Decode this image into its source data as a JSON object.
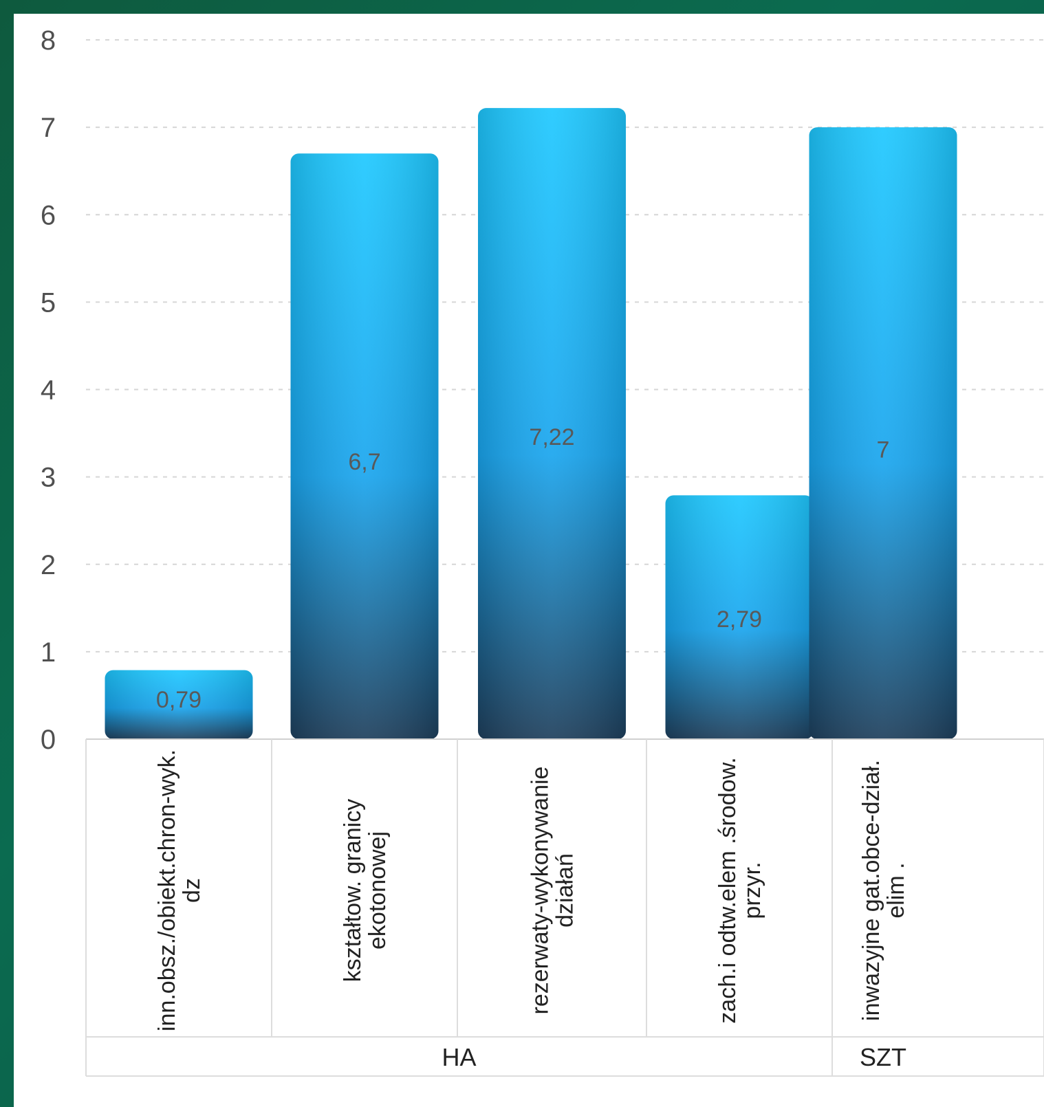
{
  "colors": {
    "bar_top": "#1ec8ff",
    "bar_bottom": "#1e3f5c",
    "grid": "#d6d6d6",
    "table_line": "#dddddd"
  },
  "chart_data": {
    "type": "bar",
    "title": "",
    "xlabel": "",
    "ylabel": "",
    "ylim": [
      0,
      8
    ],
    "yticks": [
      "0",
      "1",
      "2",
      "3",
      "4",
      "5",
      "6",
      "7",
      "8"
    ],
    "grid": true,
    "legend": "none",
    "categories": [
      "inn.obsz./obiekt.chron-wyk.\ndz",
      "kształtow. granicy\nekotonowej",
      "rezerwaty-wykonywanie\ndziałań",
      "zach.i odtw.elem .środow.\nprzyr.",
      "inwazyjne gat.obce-dział.\nelim ."
    ],
    "values": [
      0.79,
      6.7,
      7.22,
      2.79,
      7
    ],
    "value_labels": [
      "0,79",
      "6,7",
      "7,22",
      "2,79",
      "7"
    ],
    "groups": [
      {
        "label": "HA",
        "count": 4
      },
      {
        "label": "SZT",
        "count": 1
      }
    ]
  }
}
